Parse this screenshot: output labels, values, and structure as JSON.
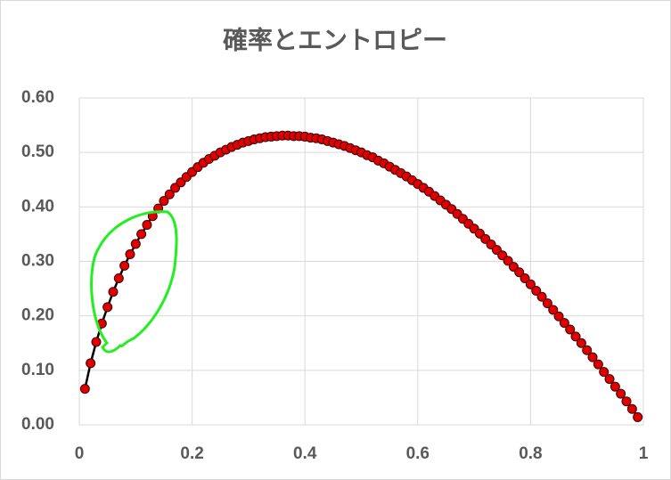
{
  "chart_data": {
    "type": "scatter-line",
    "title": "確率とエントロピー",
    "x": [
      0.01,
      0.02,
      0.03,
      0.04,
      0.05,
      0.06,
      0.07,
      0.08,
      0.09,
      0.1,
      0.11,
      0.12,
      0.13,
      0.14,
      0.15,
      0.16,
      0.17,
      0.18,
      0.19,
      0.2,
      0.21,
      0.22,
      0.23,
      0.24,
      0.25,
      0.26,
      0.27,
      0.28,
      0.29,
      0.3,
      0.31,
      0.32,
      0.33,
      0.34,
      0.35,
      0.36,
      0.37,
      0.38,
      0.39,
      0.4,
      0.41,
      0.42,
      0.43,
      0.44,
      0.45,
      0.46,
      0.47,
      0.48,
      0.49,
      0.5,
      0.51,
      0.52,
      0.53,
      0.54,
      0.55,
      0.56,
      0.57,
      0.58,
      0.59,
      0.6,
      0.61,
      0.62,
      0.63,
      0.64,
      0.65,
      0.66,
      0.67,
      0.68,
      0.69,
      0.7,
      0.71,
      0.72,
      0.73,
      0.74,
      0.75,
      0.76,
      0.77,
      0.78,
      0.79,
      0.8,
      0.81,
      0.82,
      0.83,
      0.84,
      0.85,
      0.86,
      0.87,
      0.88,
      0.89,
      0.9,
      0.91,
      0.92,
      0.93,
      0.94,
      0.95,
      0.96,
      0.97,
      0.98,
      0.99
    ],
    "series": [
      {
        "color": "#e00000",
        "line_color": "#000000",
        "values": [
          0.066,
          0.113,
          0.152,
          0.186,
          0.216,
          0.244,
          0.269,
          0.292,
          0.313,
          0.332,
          0.35,
          0.367,
          0.383,
          0.397,
          0.411,
          0.423,
          0.435,
          0.445,
          0.455,
          0.464,
          0.473,
          0.481,
          0.488,
          0.494,
          0.5,
          0.505,
          0.51,
          0.514,
          0.518,
          0.521,
          0.524,
          0.526,
          0.528,
          0.529,
          0.53,
          0.531,
          0.531,
          0.53,
          0.53,
          0.529,
          0.527,
          0.526,
          0.524,
          0.521,
          0.518,
          0.515,
          0.512,
          0.508,
          0.504,
          0.5,
          0.495,
          0.491,
          0.485,
          0.48,
          0.474,
          0.468,
          0.462,
          0.456,
          0.449,
          0.442,
          0.435,
          0.428,
          0.42,
          0.412,
          0.404,
          0.396,
          0.387,
          0.378,
          0.369,
          0.36,
          0.351,
          0.341,
          0.331,
          0.321,
          0.311,
          0.301,
          0.29,
          0.28,
          0.269,
          0.258,
          0.246,
          0.235,
          0.223,
          0.211,
          0.199,
          0.187,
          0.175,
          0.162,
          0.15,
          0.137,
          0.124,
          0.111,
          0.097,
          0.084,
          0.07,
          0.057,
          0.043,
          0.029,
          0.014
        ]
      }
    ],
    "xlim": [
      0,
      1
    ],
    "xticks": [
      0,
      0.2,
      0.4,
      0.6,
      0.8,
      1
    ],
    "ylim": [
      0,
      0.6
    ],
    "yticks": [
      {
        "value": 0,
        "label": "0.00"
      },
      {
        "value": 0.1,
        "label": "0.10"
      },
      {
        "value": 0.2,
        "label": "0.20"
      },
      {
        "value": 0.3,
        "label": "0.30"
      },
      {
        "value": 0.4,
        "label": "0.40"
      },
      {
        "value": 0.5,
        "label": "0.50"
      },
      {
        "value": 0.6,
        "label": "0.60"
      }
    ],
    "grid": true
  }
}
